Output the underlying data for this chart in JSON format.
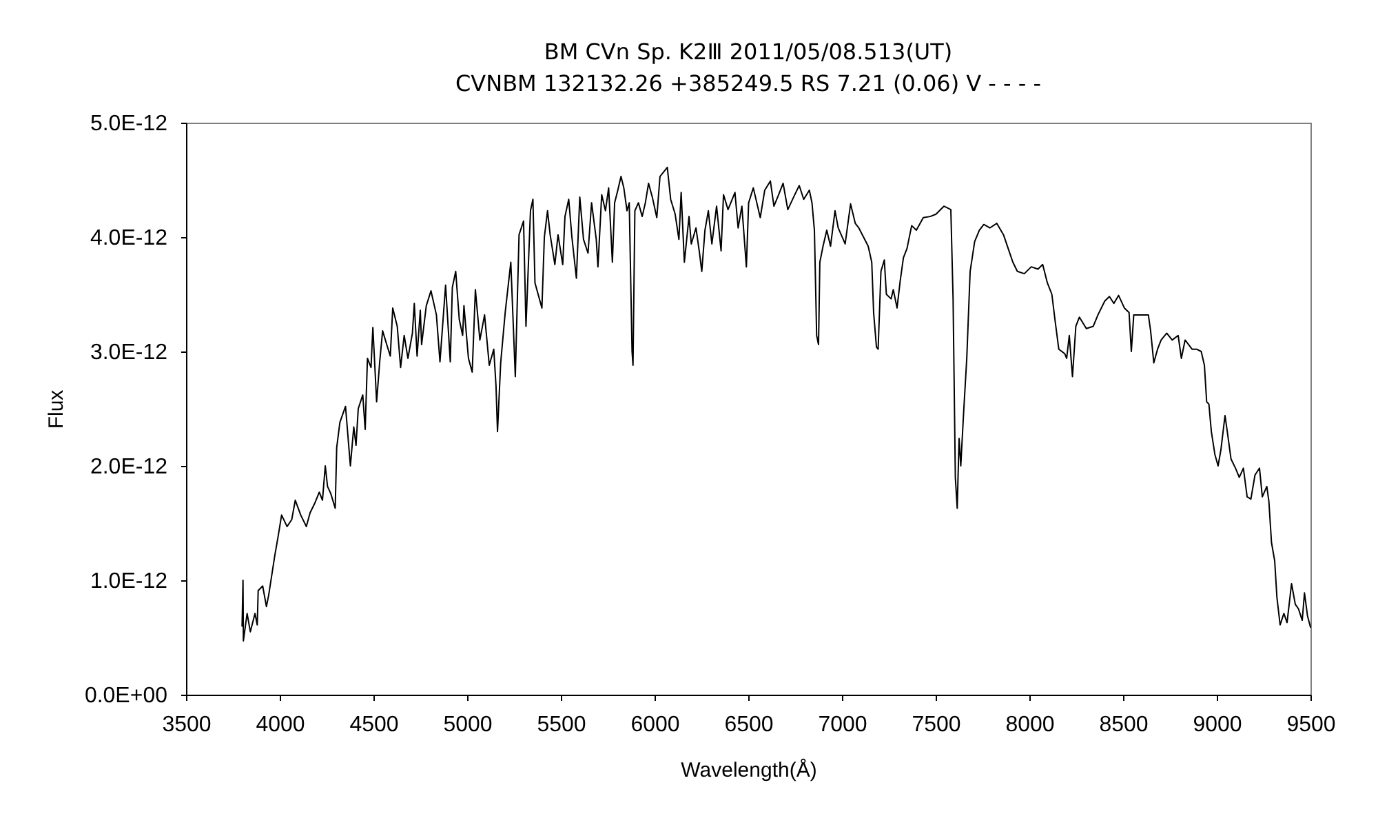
{
  "chart_data": {
    "type": "line",
    "title": "BM CVn   Sp. K2Ⅲ   2011/05/08.513(UT)",
    "subtitle": "CVNBM 132132.26 +385249.5 RS 7.21 (0.06) V - - - -",
    "xlabel": "Wavelength(Å)",
    "ylabel": "Flux",
    "xlim": [
      3500,
      9500
    ],
    "xticks": [
      3500,
      4000,
      4500,
      5000,
      5500,
      6000,
      6500,
      7000,
      7500,
      8000,
      8500,
      9000,
      9500
    ],
    "ylim": [
      0,
      5e-12
    ],
    "yticks": [
      {
        "value": 0,
        "label": "0.0E+00"
      },
      {
        "value": 1e-12,
        "label": "1.0E-12"
      },
      {
        "value": 2e-12,
        "label": "2.0E-12"
      },
      {
        "value": 3e-12,
        "label": "3.0E-12"
      },
      {
        "value": 4e-12,
        "label": "4.0E-12"
      },
      {
        "value": 5e-12,
        "label": "5.0E-12"
      }
    ],
    "x": [
      3799,
      3804,
      3806,
      3826,
      3843,
      3868,
      3880,
      3885,
      3909,
      3929,
      3941,
      3958,
      3973,
      3990,
      4010,
      4039,
      4064,
      4083,
      4112,
      4142,
      4162,
      4186,
      4211,
      4228,
      4243,
      4255,
      4272,
      4296,
      4304,
      4321,
      4351,
      4377,
      4395,
      4407,
      4419,
      4443,
      4456,
      4468,
      4487,
      4497,
      4517,
      4534,
      4549,
      4571,
      4590,
      4603,
      4627,
      4645,
      4664,
      4684,
      4708,
      4718,
      4733,
      4750,
      4757,
      4782,
      4807,
      4836,
      4855,
      4885,
      4910,
      4921,
      4939,
      4958,
      4976,
      4983,
      5007,
      5027,
      5044,
      5068,
      5093,
      5118,
      5142,
      5154,
      5162,
      5179,
      5203,
      5233,
      5257,
      5277,
      5301,
      5314,
      5338,
      5351,
      5362,
      5399,
      5412,
      5429,
      5443,
      5468,
      5485,
      5510,
      5522,
      5542,
      5559,
      5583,
      5601,
      5621,
      5645,
      5664,
      5689,
      5698,
      5718,
      5738,
      5755,
      5775,
      5787,
      5804,
      5821,
      5836,
      5853,
      5865,
      5880,
      5885,
      5895,
      5914,
      5934,
      5951,
      5968,
      5988,
      6012,
      6029,
      6049,
      6068,
      6086,
      6110,
      6130,
      6142,
      6159,
      6184,
      6196,
      6221,
      6240,
      6252,
      6269,
      6287,
      6306,
      6331,
      6355,
      6368,
      6392,
      6429,
      6446,
      6466,
      6490,
      6502,
      6527,
      6564,
      6588,
      6618,
      6637,
      6662,
      6686,
      6711,
      6748,
      6772,
      6796,
      6826,
      6840,
      6853,
      6865,
      6875,
      6882,
      6899,
      6919,
      6939,
      6963,
      6980,
      7017,
      7046,
      7071,
      7090,
      7115,
      7140,
      7159,
      7169,
      7184,
      7193,
      7208,
      7226,
      7237,
      7262,
      7274,
      7294,
      7311,
      7328,
      7347,
      7372,
      7397,
      7434,
      7471,
      7502,
      7544,
      7581,
      7593,
      7605,
      7615,
      7625,
      7634,
      7649,
      7666,
      7684,
      7708,
      7733,
      7757,
      7789,
      7826,
      7862,
      7887,
      7912,
      7936,
      7973,
      8010,
      8046,
      8071,
      8096,
      8120,
      8138,
      8157,
      8189,
      8199,
      8213,
      8230,
      8248,
      8267,
      8304,
      8341,
      8366,
      8402,
      8427,
      8451,
      8476,
      8507,
      8532,
      8544,
      8557,
      8586,
      8610,
      8635,
      8647,
      8664,
      8684,
      8703,
      8733,
      8762,
      8794,
      8811,
      8831,
      8868,
      8892,
      8917,
      8934,
      8946,
      8958,
      8971,
      8990,
      9007,
      9022,
      9044,
      9056,
      9076,
      9100,
      9120,
      9142,
      9162,
      9182,
      9204,
      9228,
      9243,
      9267,
      9278,
      9292,
      9309,
      9321,
      9338,
      9358,
      9375,
      9399,
      9419,
      9436,
      9456,
      9468,
      9484,
      9500
    ],
    "series": [
      {
        "color": "#000000",
        "values": [
          6e-13,
          1e-12,
          4.7e-13,
          7.1e-13,
          5.5e-13,
          7.1e-13,
          6.1e-13,
          9.1e-13,
          9.5e-13,
          7.7e-13,
          8.7e-13,
          1.05e-12,
          1.21e-12,
          1.37e-12,
          1.57e-12,
          1.47e-12,
          1.53e-12,
          1.7e-12,
          1.57e-12,
          1.47e-12,
          1.59e-12,
          1.67e-12,
          1.77e-12,
          1.7e-12,
          2e-12,
          1.82e-12,
          1.76e-12,
          1.63e-12,
          2.16e-12,
          2.38e-12,
          2.52e-12,
          2e-12,
          2.34e-12,
          2.18e-12,
          2.5e-12,
          2.62e-12,
          2.32e-12,
          2.94e-12,
          2.86e-12,
          3.21e-12,
          2.56e-12,
          2.92e-12,
          3.18e-12,
          3.06e-12,
          2.96e-12,
          3.38e-12,
          3.22e-12,
          2.86e-12,
          3.14e-12,
          2.94e-12,
          3.16e-12,
          3.42e-12,
          2.96e-12,
          3.36e-12,
          3.06e-12,
          3.4e-12,
          3.53e-12,
          3.32e-12,
          2.91e-12,
          3.58e-12,
          2.91e-12,
          3.56e-12,
          3.7e-12,
          3.28e-12,
          3.14e-12,
          3.4e-12,
          2.94e-12,
          2.82e-12,
          3.54e-12,
          3.1e-12,
          3.32e-12,
          2.88e-12,
          3.02e-12,
          2.7e-12,
          2.3e-12,
          2.9e-12,
          3.34e-12,
          3.78e-12,
          2.78e-12,
          4.02e-12,
          4.14e-12,
          3.22e-12,
          4.23e-12,
          4.33e-12,
          3.6e-12,
          3.38e-12,
          4e-12,
          4.23e-12,
          4.02e-12,
          3.76e-12,
          4.02e-12,
          3.76e-12,
          4.18e-12,
          4.33e-12,
          4e-12,
          3.64e-12,
          4.35e-12,
          3.98e-12,
          3.86e-12,
          4.3e-12,
          3.98e-12,
          3.74e-12,
          4.37e-12,
          4.23e-12,
          4.43e-12,
          3.78e-12,
          4.3e-12,
          4.41e-12,
          4.53e-12,
          4.43e-12,
          4.23e-12,
          4.3e-12,
          3e-12,
          2.88e-12,
          4.23e-12,
          4.3e-12,
          4.18e-12,
          4.3e-12,
          4.47e-12,
          4.35e-12,
          4.17e-12,
          4.53e-12,
          4.57e-12,
          4.61e-12,
          4.33e-12,
          4.2e-12,
          3.98e-12,
          4.39e-12,
          3.78e-12,
          4.18e-12,
          3.94e-12,
          4.08e-12,
          3.86e-12,
          3.7e-12,
          4.06e-12,
          4.23e-12,
          3.94e-12,
          4.27e-12,
          3.88e-12,
          4.37e-12,
          4.24e-12,
          4.39e-12,
          4.08e-12,
          4.27e-12,
          3.74e-12,
          4.3e-12,
          4.43e-12,
          4.17e-12,
          4.41e-12,
          4.49e-12,
          4.27e-12,
          4.37e-12,
          4.47e-12,
          4.24e-12,
          4.37e-12,
          4.45e-12,
          4.33e-12,
          4.41e-12,
          4.3e-12,
          4.06e-12,
          3.14e-12,
          3.06e-12,
          3.78e-12,
          3.92e-12,
          4.06e-12,
          3.92e-12,
          4.23e-12,
          4.08e-12,
          3.94e-12,
          4.29e-12,
          4.12e-12,
          4.08e-12,
          4e-12,
          3.92e-12,
          3.78e-12,
          3.34e-12,
          3.04e-12,
          3.02e-12,
          3.7e-12,
          3.8e-12,
          3.5e-12,
          3.46e-12,
          3.54e-12,
          3.38e-12,
          3.62e-12,
          3.82e-12,
          3.9e-12,
          4.1e-12,
          4.06e-12,
          4.17e-12,
          4.18e-12,
          4.2e-12,
          4.27e-12,
          4.24e-12,
          3.46e-12,
          1.9e-12,
          1.63e-12,
          2.24e-12,
          2e-12,
          2.46e-12,
          2.94e-12,
          3.7e-12,
          3.96e-12,
          4.06e-12,
          4.11e-12,
          4.08e-12,
          4.12e-12,
          4.02e-12,
          3.9e-12,
          3.78e-12,
          3.7e-12,
          3.68e-12,
          3.74e-12,
          3.72e-12,
          3.76e-12,
          3.6e-12,
          3.5e-12,
          3.26e-12,
          3.02e-12,
          2.98e-12,
          2.94e-12,
          3.14e-12,
          2.78e-12,
          3.22e-12,
          3.3e-12,
          3.2e-12,
          3.22e-12,
          3.32e-12,
          3.44e-12,
          3.48e-12,
          3.42e-12,
          3.49e-12,
          3.38e-12,
          3.34e-12,
          3e-12,
          3.32e-12,
          3.32e-12,
          3.32e-12,
          3.32e-12,
          3.18e-12,
          2.9e-12,
          3.02e-12,
          3.1e-12,
          3.16e-12,
          3.1e-12,
          3.14e-12,
          2.94e-12,
          3.1e-12,
          3.02e-12,
          3.02e-12,
          3e-12,
          2.88e-12,
          2.56e-12,
          2.54e-12,
          2.3e-12,
          2.1e-12,
          2e-12,
          2.14e-12,
          2.44e-12,
          2.3e-12,
          2.06e-12,
          1.98e-12,
          1.9e-12,
          1.98e-12,
          1.73e-12,
          1.71e-12,
          1.92e-12,
          1.98e-12,
          1.73e-12,
          1.82e-12,
          1.69e-12,
          1.33e-12,
          1.17e-12,
          8.5e-13,
          6.1e-13,
          7.1e-13,
          6.3e-13,
          9.7e-13,
          7.9e-13,
          7.5e-13,
          6.5e-13,
          8.9e-13,
          6.9e-13,
          5.9e-13
        ]
      }
    ]
  }
}
